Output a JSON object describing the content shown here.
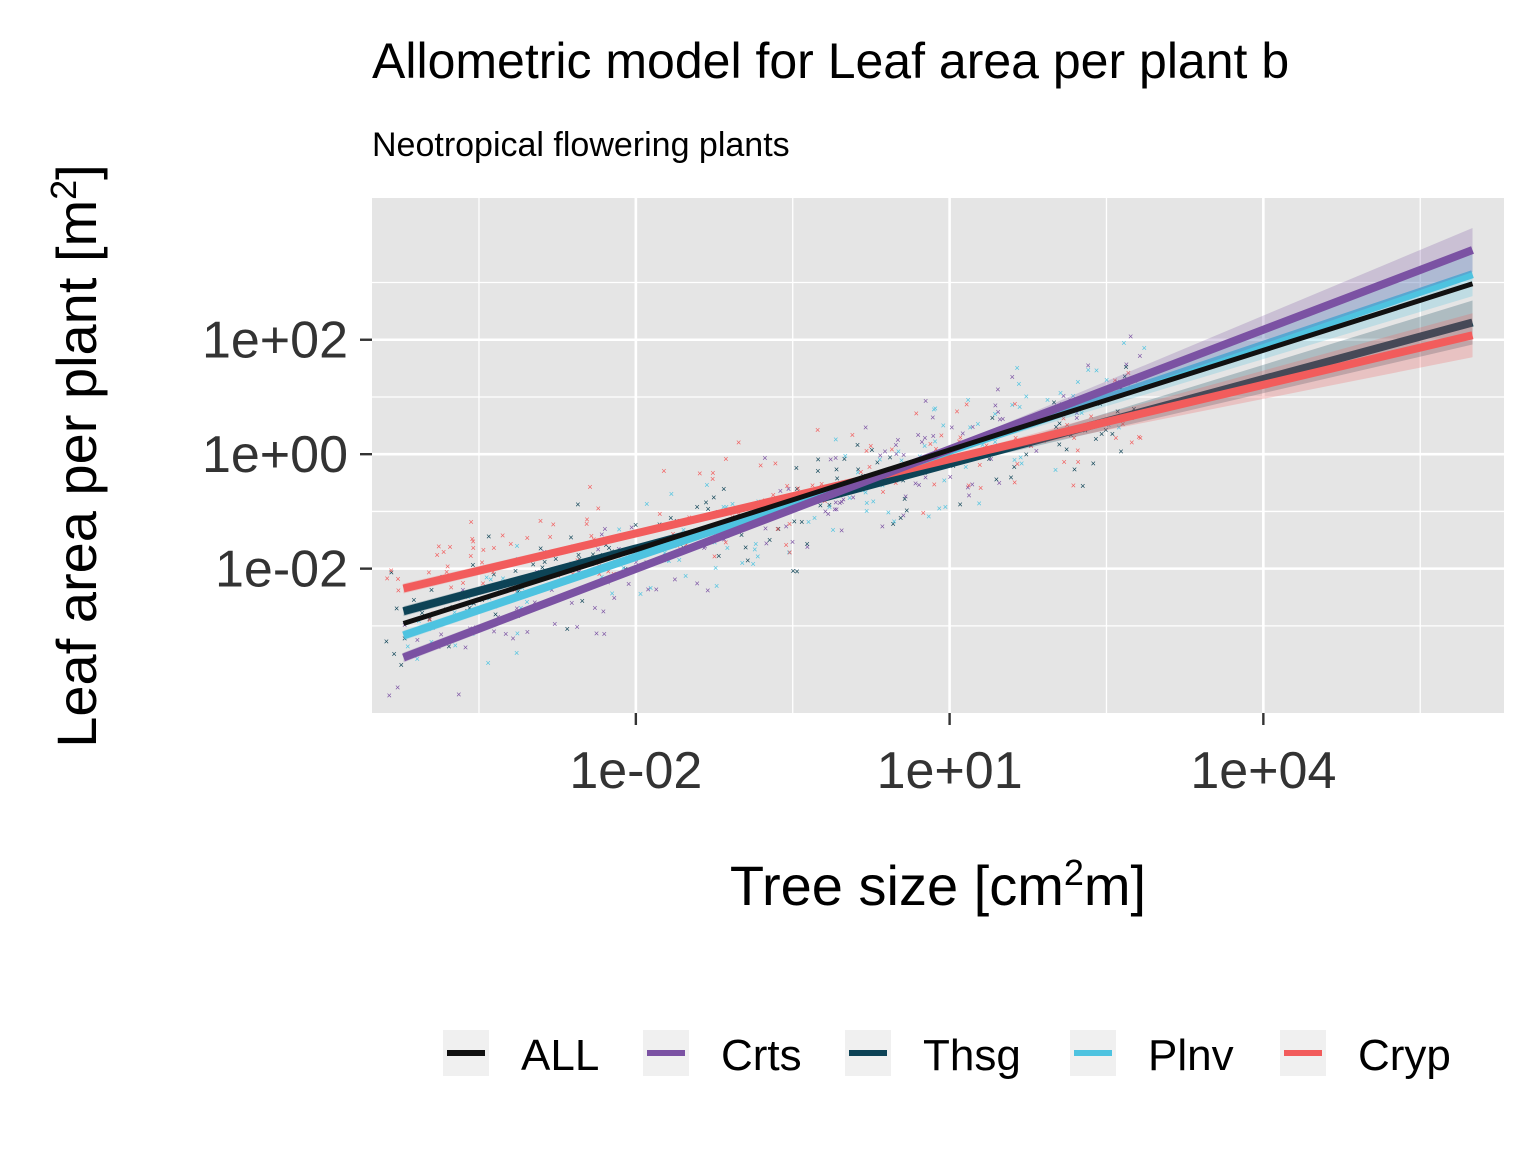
{
  "chart_data": {
    "type": "scatter",
    "title": "Allometric model for Leaf area per plant b",
    "subtitle": "Neotropical flowering plants",
    "xlabel": "Tree size [cm",
    "xlabel_sup": "2",
    "xlabel_end": "m]",
    "ylabel": "Leaf area per plant [m",
    "ylabel_sup": "2",
    "ylabel_end": "]",
    "x_scale": "log10",
    "y_scale": "log10",
    "xlim": [
      3e-05,
      2000000
    ],
    "ylim": [
      3e-05,
      30000
    ],
    "x_ticks": [
      0.01,
      10,
      10000
    ],
    "x_tick_labels": [
      "1e-02",
      "1e+01",
      "1e+04"
    ],
    "y_ticks": [
      0.01,
      1,
      100
    ],
    "y_tick_labels": [
      "1e-02",
      "1e+00",
      "1e+02"
    ],
    "grid": true,
    "legend_position": "bottom",
    "series": [
      {
        "name": "ALL",
        "color": "#111111",
        "fit_x": [
          6e-05,
          1000000
        ],
        "fit_y": [
          0.0011,
          950
        ]
      },
      {
        "name": "Crts",
        "color": "#7b52a3",
        "fit_x": [
          6e-05,
          1000000
        ],
        "fit_y": [
          0.00028,
          3700
        ]
      },
      {
        "name": "Thsg",
        "color": "#0d4356",
        "fit_x": [
          6e-05,
          1000000
        ],
        "fit_y": [
          0.0018,
          200
        ]
      },
      {
        "name": "Plnv",
        "color": "#4ec3e0",
        "fit_x": [
          6e-05,
          1000000
        ],
        "fit_y": [
          0.00068,
          1400
        ]
      },
      {
        "name": "Cryp",
        "color": "#f25c5c",
        "fit_x": [
          6e-05,
          1000000
        ],
        "fit_y": [
          0.0045,
          120
        ]
      }
    ]
  }
}
